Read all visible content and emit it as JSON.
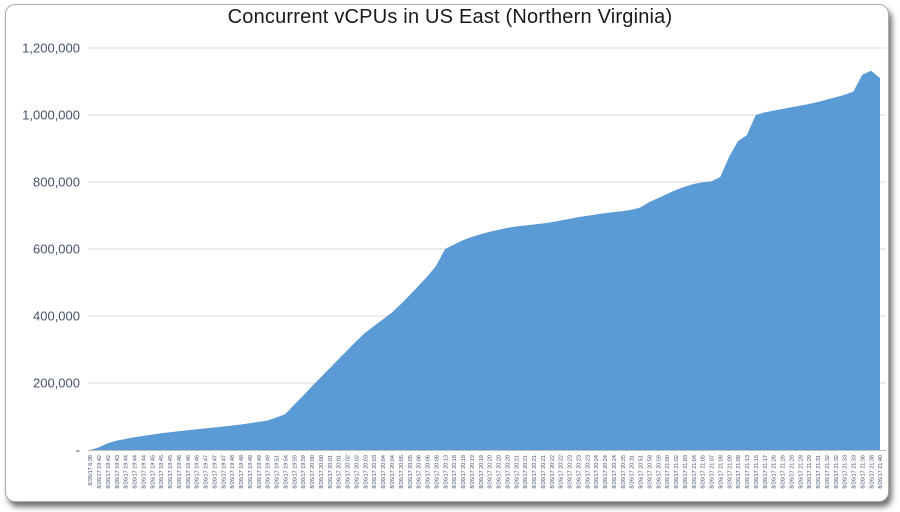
{
  "chart_data": {
    "type": "area",
    "title": "Concurrent vCPUs in US East (Northern Virginia)",
    "legend": "none",
    "grid": "horizontal",
    "ylim": [
      0,
      1200000
    ],
    "y_ticks": [
      0,
      200000,
      400000,
      600000,
      800000,
      1000000,
      1200000
    ],
    "y_tick_labels": [
      "-",
      "200,000",
      "400,000",
      "600,000",
      "800,000",
      "1,000,000",
      "1,200,000"
    ],
    "colors": {
      "area_fill": "#5b9bd5",
      "axis_text": "#44546a",
      "title_text": "#1a1a1a",
      "gridline": "#d9d9d9",
      "axis_line": "#bfbfbf"
    },
    "categories": [
      "8/26/17 6:38",
      "8/26/17 19:42",
      "8/26/17 19:42",
      "8/26/17 19:43",
      "8/26/17 19:44",
      "8/26/17 19:44",
      "8/26/17 19:44",
      "8/26/17 19:45",
      "8/26/17 19:45",
      "8/26/17 19:45",
      "8/26/17 19:46",
      "8/26/17 19:46",
      "8/26/17 19:46",
      "8/26/17 19:47",
      "8/26/17 19:47",
      "8/26/17 19:47",
      "8/26/17 19:48",
      "8/26/17 19:48",
      "8/26/17 19:49",
      "8/26/17 19:49",
      "8/26/17 19:49",
      "8/26/17 19:51",
      "8/26/17 19:54",
      "8/26/17 19:59",
      "8/26/17 19:59",
      "8/26/17 20:00",
      "8/26/17 20:00",
      "8/26/17 20:01",
      "8/26/17 20:01",
      "8/26/17 20:02",
      "8/26/17 20:02",
      "8/26/17 20:03",
      "8/26/17 20:03",
      "8/26/17 20:04",
      "8/26/17 20:04",
      "8/26/17 20:05",
      "8/26/17 20:05",
      "8/26/17 20:06",
      "8/26/17 20:06",
      "8/26/17 20:08",
      "8/26/17 20:13",
      "8/26/17 20:18",
      "8/26/17 20:18",
      "8/26/17 20:19",
      "8/26/17 20:19",
      "8/26/17 20:20",
      "8/26/17 20:20",
      "8/26/17 20:20",
      "8/26/17 20:21",
      "8/26/17 20:21",
      "8/26/17 20:21",
      "8/26/17 20:21",
      "8/26/17 20:22",
      "8/26/17 20:22",
      "8/26/17 20:23",
      "8/26/17 20:23",
      "8/26/17 20:23",
      "8/26/17 20:24",
      "8/26/17 20:24",
      "8/26/17 20:24",
      "8/26/17 20:25",
      "8/26/17 20:31",
      "8/26/17 20:51",
      "8/26/17 20:58",
      "8/26/17 20:59",
      "8/26/17 21:00",
      "8/26/17 21:02",
      "8/26/17 21:03",
      "8/26/17 21:04",
      "8/26/17 21:05",
      "8/26/17 21:07",
      "8/26/17 21:08",
      "8/26/17 21:09",
      "8/26/17 21:09",
      "8/26/17 21:13",
      "8/26/17 21:15",
      "8/26/17 21:17",
      "8/26/17 21:26",
      "8/26/17 21:26",
      "8/26/17 21:28",
      "8/26/17 21:28",
      "8/26/17 21:29",
      "8/26/17 21:31",
      "8/26/17 21:32",
      "8/26/17 21:32",
      "8/26/17 21:33",
      "8/26/17 21:33",
      "8/26/17 21:36",
      "8/26/17 21:38",
      "8/26/17 21:40"
    ],
    "values": [
      0,
      8000,
      20000,
      28000,
      33000,
      38000,
      42000,
      46000,
      50000,
      53000,
      56000,
      59000,
      62000,
      64500,
      67000,
      70000,
      73000,
      76000,
      80000,
      84000,
      88000,
      97000,
      107000,
      135000,
      162000,
      190000,
      217000,
      244000,
      271000,
      298000,
      325000,
      350000,
      370000,
      390000,
      410000,
      435000,
      462000,
      490000,
      518000,
      550000,
      600000,
      613000,
      626000,
      636000,
      644000,
      651000,
      657000,
      663000,
      667000,
      670000,
      673000,
      676000,
      680000,
      685000,
      690000,
      695000,
      699000,
      703000,
      707000,
      710000,
      713000,
      717000,
      724000,
      740000,
      752000,
      764000,
      776000,
      786000,
      794000,
      799000,
      802000,
      815000,
      875000,
      922000,
      940000,
      1000000,
      1008000,
      1013000,
      1018000,
      1023000,
      1028000,
      1033000,
      1039000,
      1046000,
      1053000,
      1060000,
      1070000,
      1120000,
      1132000,
      1110000
    ]
  }
}
